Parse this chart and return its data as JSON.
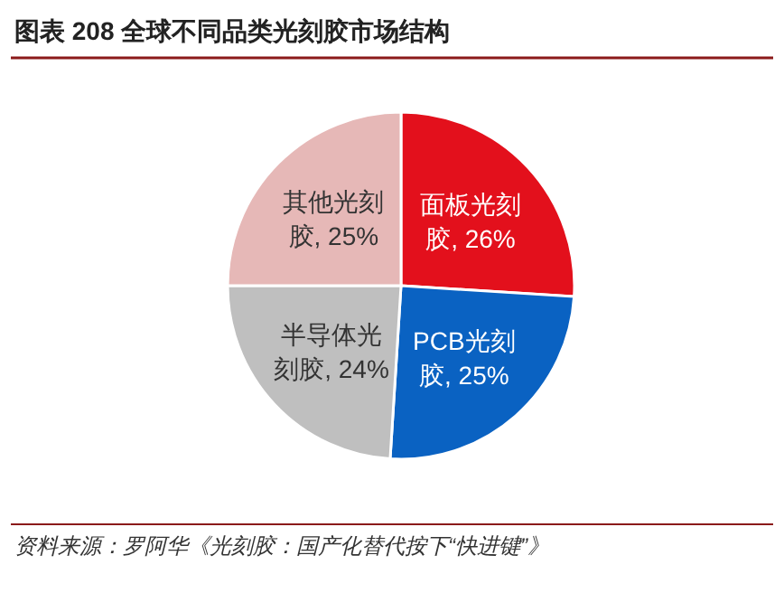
{
  "chart_data": {
    "type": "pie",
    "title": "图表 208 全球不同品类光刻胶市场结构",
    "categories": [
      "面板光刻胶",
      "PCB光刻胶",
      "半导体光刻胶",
      "其他光刻胶"
    ],
    "values": [
      26,
      25,
      24,
      25
    ],
    "colors": [
      "#e3101c",
      "#0a62c2",
      "#bfbfbf",
      "#e6b8b7"
    ],
    "value_labels": [
      ", 26%",
      ", 25%",
      ", 24%",
      ", 25%"
    ],
    "annotations": [
      "资料来源：罗阿华《光刻胶：国产化替代按下“快进键”》"
    ]
  }
}
